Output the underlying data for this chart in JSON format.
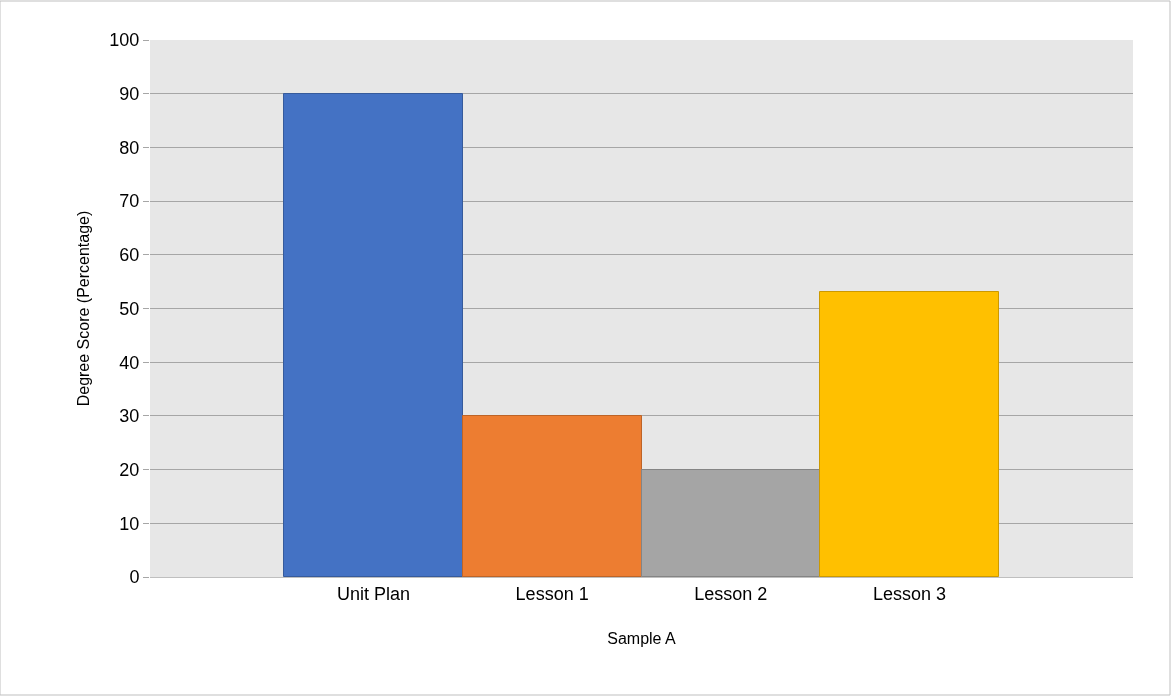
{
  "chart_data": {
    "type": "bar",
    "xlabel": "Sample A",
    "ylabel": "Degree Score (Percentage)",
    "categories": [
      "Unit Plan",
      "Lesson 1",
      "Lesson 2",
      "Lesson 3"
    ],
    "values": [
      90,
      30,
      20,
      53
    ],
    "colors": [
      "#4472c4",
      "#ed7d31",
      "#a5a5a5",
      "#ffc000"
    ],
    "ylim": [
      0,
      100
    ],
    "yticks": [
      0,
      10,
      20,
      30,
      40,
      50,
      60,
      70,
      80,
      90,
      100
    ],
    "grid": "y"
  }
}
